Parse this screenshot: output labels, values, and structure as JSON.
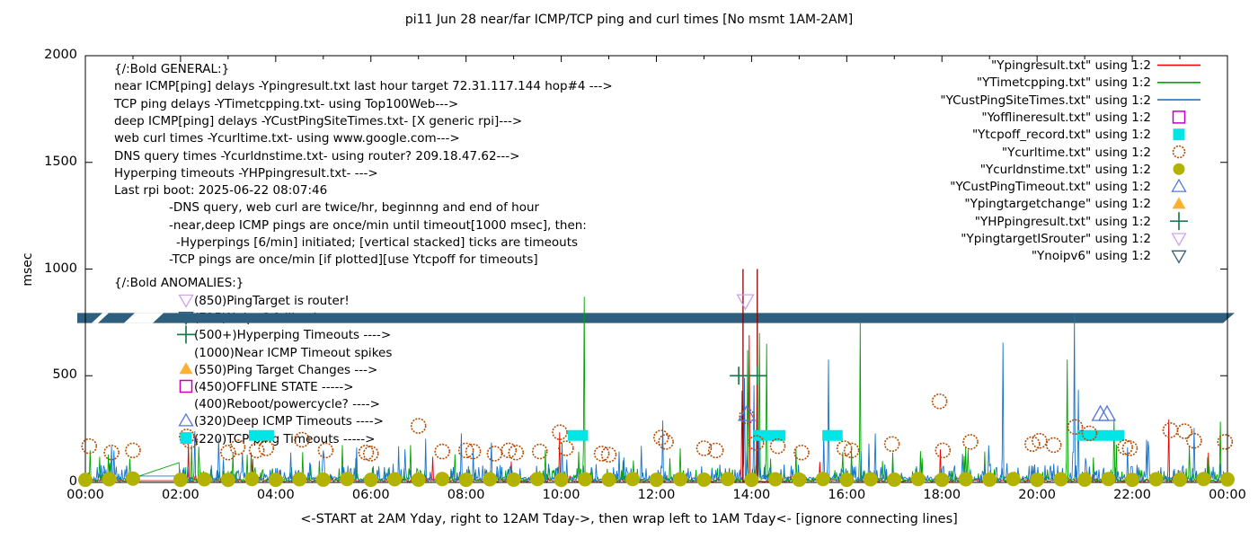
{
  "title": "pi11 Jun 28  near/far ICMP/TCP ping and curl times [No msmt 1AM-2AM]",
  "ylabel": "msec",
  "xlabel": "<-START at 2AM Yday, right to 12AM Tday->, then wrap left to 1AM Tday<- [ignore connecting lines]",
  "y_ticks": [
    "0",
    "500",
    "1000",
    "1500",
    "2000"
  ],
  "x_ticks": [
    "00:00",
    "02:00",
    "04:00",
    "06:00",
    "08:00",
    "10:00",
    "12:00",
    "14:00",
    "16:00",
    "18:00",
    "20:00",
    "22:00",
    "00:00"
  ],
  "legend": [
    {
      "label": "\"Ypingresult.txt\" using 1:2",
      "marker": "line",
      "color": "#ee0000"
    },
    {
      "label": "\"YTimetcpping.txt\" using 1:2",
      "marker": "line",
      "color": "#00a400"
    },
    {
      "label": "\"YCustPingSiteTimes.txt\" using 1:2",
      "marker": "line",
      "color": "#1874cd"
    },
    {
      "label": "\"Yofflineresult.txt\" using 1:2",
      "marker": "square-open",
      "color": "#c000c0"
    },
    {
      "label": "\"Ytcpoff_record.txt\" using 1:2",
      "marker": "square-fill",
      "color": "#00e6e6"
    },
    {
      "label": "\"Ycurltime.txt\" using 1:2",
      "marker": "circle-open",
      "color": "#b54a00"
    },
    {
      "label": "\"Ycurldnstime.txt\" using 1:2",
      "marker": "circle-fill",
      "color": "#b2b200"
    },
    {
      "label": "\"YCustPingTimeout.txt\" using 1:2",
      "marker": "tri-up-open",
      "color": "#5577dd"
    },
    {
      "label": "\"Ypingtargetchange\" using 1:2",
      "marker": "tri-up-fill",
      "color": "#ffb02e"
    },
    {
      "label": "\"YHPpingresult.txt\" using 1:2",
      "marker": "plus",
      "color": "#1e7a50"
    },
    {
      "label": "\"YpingtargetISrouter\" using 1:2",
      "marker": "tri-down-open",
      "color": "#cfa3e8"
    },
    {
      "label": "\"Ynoipv6\" using 1:2",
      "marker": "tri-down-open",
      "color": "#2e5f7e"
    }
  ],
  "general_block": {
    "lines": [
      {
        "t": "{/:Bold GENERAL:}",
        "i": 0
      },
      {
        "t": "near ICMP[ping] delays -Ypingresult.txt last hour target 72.31.117.144 hop#4 --->",
        "i": 0
      },
      {
        "t": "TCP ping delays -YTimetcpping.txt- using Top100Web--->",
        "i": 0
      },
      {
        "t": "deep ICMP[ping] delays -YCustPingSiteTimes.txt- [X generic rpi]--->",
        "i": 0
      },
      {
        "t": "web curl times -Ycurltime.txt- using www.google.com--->",
        "i": 0
      },
      {
        "t": "DNS query times -Ycurldnstime.txt- using router? 209.18.47.62--->",
        "i": 0
      },
      {
        "t": "Hyperping timeouts -YHPpingresult.txt- --->",
        "i": 0
      },
      {
        "t": "Last rpi boot: 2025-06-22 08:07:46",
        "i": 0
      },
      {
        "t": "-DNS query, web curl are twice/hr, beginnng and end of hour",
        "i": 1
      },
      {
        "t": "-near,deep ICMP pings are once/min until timeout[1000 msec], then:",
        "i": 1
      },
      {
        "t": "-Hyperpings [6/min] initiated; [vertical stacked] ticks are timeouts",
        "i": 2
      },
      {
        "t": "-TCP pings are once/min [if plotted][use Ytcpoff for timeouts]",
        "i": 1
      }
    ]
  },
  "anomalies_block": {
    "heading": "{/:Bold ANOMALIES:}",
    "items": [
      {
        "marker": "tri-down-open",
        "color": "#cfa3e8",
        "t": "(850)PingTarget is router!"
      },
      {
        "marker": "tri-down-open",
        "color": "#2e5f7e",
        "t": "(725)Noipv6 fallback --->"
      },
      {
        "marker": "plus",
        "color": "#1e7a50",
        "t": "(500+)Hyperping Timeouts ---->"
      },
      {
        "marker": "none",
        "color": "",
        "t": "(1000)Near ICMP Timeout spikes"
      },
      {
        "marker": "tri-up-fill",
        "color": "#ffb02e",
        "t": "(550)Ping Target Changes --->"
      },
      {
        "marker": "square-open",
        "color": "#c000c0",
        "t": "(450)OFFLINE STATE ----->"
      },
      {
        "marker": "none",
        "color": "",
        "t": "(400)Reboot/powercycle? ---->"
      },
      {
        "marker": "tri-up-open",
        "color": "#5577dd",
        "t": "(320)Deep ICMP Timeouts ---->"
      },
      {
        "marker": "square-fill",
        "color": "#00e6e6",
        "t": "(220)TCP ping Timeouts ----->"
      }
    ]
  },
  "chart_data": {
    "type": "line",
    "title": "pi11 Jun 28  near/far ICMP/TCP ping and curl times [No msmt 1AM-2AM]",
    "xlabel": "<-START at 2AM Yday, right to 12AM Tday->, then wrap left to 1AM Tday<- [ignore connecting lines]",
    "ylabel": "msec",
    "ylim": [
      0,
      2000
    ],
    "x_hours_range": [
      0,
      24
    ],
    "x_tick_interval_hours": 2,
    "no_measurement_gap_hours": [
      1,
      2
    ],
    "grid": false,
    "legend_position": "top-right-inside",
    "band": {
      "v_low": 747,
      "v_high": 794,
      "color": "#2e5f7e"
    },
    "series": [
      {
        "name": "Ypingresult.txt",
        "color": "#ee0000",
        "style": "line",
        "noise": {
          "floor": 3,
          "jitter": 8,
          "burst_chance": 0.08,
          "burst_max": 28,
          "tall_chance": 0.008,
          "tall_max": 120,
          "gap_flat": 8
        },
        "spikes": [
          [
            2.17,
            185
          ],
          [
            7.3,
            120
          ],
          [
            9.97,
            235
          ],
          [
            13.8,
            430
          ],
          [
            13.95,
            690
          ],
          [
            14.12,
            520
          ],
          [
            17.97,
            155
          ],
          [
            22.77,
            295
          ],
          [
            23.6,
            140
          ]
        ]
      },
      {
        "name": "YTimetcpping.txt",
        "color": "#00a400",
        "style": "line",
        "noise": {
          "floor": 5,
          "jitter": 14,
          "burst_chance": 0.18,
          "burst_max": 55,
          "tall_chance": 0.03,
          "tall_max": 150,
          "gap_flat": 20
        },
        "spikes": [
          [
            0.3,
            120
          ],
          [
            3.4,
            130
          ],
          [
            5.4,
            175
          ],
          [
            6.83,
            175
          ],
          [
            10.49,
            870
          ],
          [
            12.5,
            160
          ],
          [
            13.92,
            620
          ],
          [
            14.17,
            700
          ],
          [
            14.32,
            650
          ],
          [
            16.29,
            750
          ],
          [
            18.5,
            165
          ],
          [
            20.64,
            575
          ],
          [
            21.62,
            300
          ],
          [
            23.2,
            170
          ],
          [
            23.85,
            285
          ]
        ]
      },
      {
        "name": "YCustPingSiteTimes.txt",
        "color": "#1874cd",
        "style": "line",
        "noise": {
          "floor": 8,
          "jitter": 18,
          "burst_chance": 0.22,
          "burst_max": 70,
          "tall_chance": 0.04,
          "tall_max": 190,
          "gap_flat": 30
        },
        "spikes": [
          [
            0.6,
            150
          ],
          [
            2.3,
            240
          ],
          [
            5.0,
            150
          ],
          [
            7.9,
            230
          ],
          [
            12.14,
            290
          ],
          [
            13.85,
            490
          ],
          [
            14.05,
            455
          ],
          [
            15.62,
            575
          ],
          [
            16.6,
            230
          ],
          [
            19.28,
            655
          ],
          [
            20.79,
            790
          ],
          [
            20.87,
            435
          ],
          [
            22.3,
            200
          ],
          [
            23.3,
            255
          ]
        ]
      }
    ],
    "near_icmp_timeout_lines": {
      "color": "#8b0000",
      "value": 1000,
      "hours": [
        13.82,
        14.12
      ]
    },
    "markers": {
      "curl_circles": {
        "name": "Ycurltime.txt",
        "color": "#b54a00",
        "points": [
          [
            0.08,
            170
          ],
          [
            0.55,
            140
          ],
          [
            1.0,
            150
          ],
          [
            2.13,
            215
          ],
          [
            2.2,
            195
          ],
          [
            3.0,
            140
          ],
          [
            3.2,
            165
          ],
          [
            3.6,
            150
          ],
          [
            3.8,
            160
          ],
          [
            4.55,
            200
          ],
          [
            5.05,
            150
          ],
          [
            5.9,
            140
          ],
          [
            6.0,
            135
          ],
          [
            7.0,
            265
          ],
          [
            7.5,
            145
          ],
          [
            8.0,
            150
          ],
          [
            8.15,
            145
          ],
          [
            8.6,
            135
          ],
          [
            8.9,
            150
          ],
          [
            9.05,
            140
          ],
          [
            9.55,
            145
          ],
          [
            9.97,
            235
          ],
          [
            10.1,
            160
          ],
          [
            10.85,
            135
          ],
          [
            11.0,
            130
          ],
          [
            12.1,
            210
          ],
          [
            12.2,
            190
          ],
          [
            13.0,
            160
          ],
          [
            13.25,
            150
          ],
          [
            13.9,
            310
          ],
          [
            14.1,
            185
          ],
          [
            14.55,
            170
          ],
          [
            15.05,
            140
          ],
          [
            15.95,
            160
          ],
          [
            16.1,
            150
          ],
          [
            16.95,
            180
          ],
          [
            17.95,
            380
          ],
          [
            18.02,
            150
          ],
          [
            18.6,
            190
          ],
          [
            19.9,
            180
          ],
          [
            20.05,
            195
          ],
          [
            20.35,
            175
          ],
          [
            20.8,
            260
          ],
          [
            21.1,
            230
          ],
          [
            21.85,
            165
          ],
          [
            21.95,
            160
          ],
          [
            22.8,
            245
          ],
          [
            23.1,
            240
          ],
          [
            23.3,
            195
          ],
          [
            23.95,
            190
          ]
        ]
      },
      "dns_dots": {
        "name": "Ycurldnstime.txt",
        "color": "#b2b200",
        "points": [
          [
            0,
            12
          ],
          [
            0.5,
            15
          ],
          [
            1,
            18
          ],
          [
            2,
            12
          ],
          [
            2.5,
            15
          ],
          [
            3,
            12
          ],
          [
            3.5,
            16
          ],
          [
            4,
            12
          ],
          [
            4.5,
            15
          ],
          [
            5,
            13
          ],
          [
            5.5,
            16
          ],
          [
            6,
            12
          ],
          [
            6.5,
            15
          ],
          [
            7,
            13
          ],
          [
            7.5,
            16
          ],
          [
            8,
            12
          ],
          [
            8.5,
            15
          ],
          [
            9,
            13
          ],
          [
            9.5,
            16
          ],
          [
            10,
            12
          ],
          [
            10.5,
            15
          ],
          [
            11,
            13
          ],
          [
            11.5,
            16
          ],
          [
            12,
            12
          ],
          [
            12.5,
            15
          ],
          [
            13,
            13
          ],
          [
            13.5,
            16
          ],
          [
            14,
            12
          ],
          [
            14.5,
            15
          ],
          [
            15,
            13
          ],
          [
            15.5,
            16
          ],
          [
            16,
            12
          ],
          [
            16.5,
            15
          ],
          [
            17,
            13
          ],
          [
            17.5,
            16
          ],
          [
            18,
            12
          ],
          [
            18.5,
            15
          ],
          [
            19,
            13
          ],
          [
            19.5,
            16
          ],
          [
            20,
            12
          ],
          [
            20.5,
            15
          ],
          [
            21,
            13
          ],
          [
            21.5,
            16
          ],
          [
            22,
            12
          ],
          [
            22.5,
            15
          ],
          [
            23,
            13
          ],
          [
            23.5,
            16
          ],
          [
            24,
            14
          ]
        ]
      },
      "tcp_timeout_runs": {
        "name": "Ytcpoff_record.txt",
        "color": "#00e6e6",
        "value": 220,
        "hour_ranges": [
          [
            3.55,
            3.85
          ],
          [
            10.25,
            10.45
          ],
          [
            14.15,
            14.6
          ],
          [
            15.6,
            15.8
          ],
          [
            20.95,
            21.72
          ]
        ]
      },
      "deep_icmp_timeouts": {
        "name": "YCustPingTimeout.txt",
        "color": "#5577dd",
        "value": 320,
        "hours": [
          13.9,
          21.33,
          21.47
        ]
      },
      "hyperping_timeouts": {
        "name": "YHPpingresult.txt",
        "color": "#1e7a50",
        "value": 500,
        "hours": [
          13.73,
          14.12
        ]
      },
      "pingtarget_is_router": {
        "name": "YpingtargetISrouter",
        "color": "#cfa3e8",
        "value": 850,
        "hours": [
          13.87
        ]
      }
    }
  }
}
